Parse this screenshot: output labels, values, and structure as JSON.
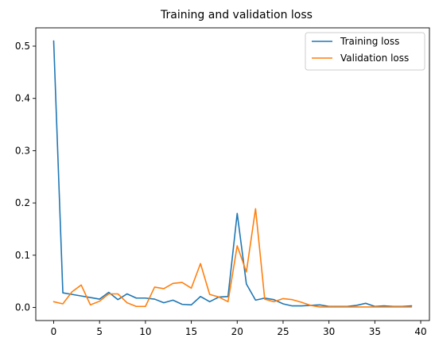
{
  "chart_data": {
    "type": "line",
    "title": "Training and validation loss",
    "xlabel": "",
    "ylabel": "",
    "xlim": [
      -1.95,
      40.95
    ],
    "ylim": [
      -0.025,
      0.535
    ],
    "xticks": [
      0,
      5,
      10,
      15,
      20,
      25,
      30,
      35,
      40
    ],
    "yticks": [
      0.0,
      0.1,
      0.2,
      0.3,
      0.4,
      0.5
    ],
    "ytick_labels": [
      "0.0",
      "0.1",
      "0.2",
      "0.3",
      "0.4",
      "0.5"
    ],
    "grid": false,
    "legend_position": "top-right",
    "x": [
      0,
      1,
      2,
      3,
      4,
      5,
      6,
      7,
      8,
      9,
      10,
      11,
      12,
      13,
      14,
      15,
      16,
      17,
      18,
      19,
      20,
      21,
      22,
      23,
      24,
      25,
      26,
      27,
      28,
      29,
      30,
      31,
      32,
      33,
      34,
      35,
      36,
      37,
      38,
      39
    ],
    "series": [
      {
        "name": "Training loss",
        "color": "#1f77b4",
        "values": [
          0.51,
          0.028,
          0.025,
          0.022,
          0.019,
          0.016,
          0.029,
          0.015,
          0.026,
          0.018,
          0.018,
          0.016,
          0.009,
          0.014,
          0.006,
          0.005,
          0.021,
          0.011,
          0.02,
          0.021,
          0.18,
          0.045,
          0.014,
          0.018,
          0.015,
          0.007,
          0.003,
          0.003,
          0.004,
          0.005,
          0.002,
          0.002,
          0.002,
          0.004,
          0.008,
          0.002,
          0.003,
          0.002,
          0.002,
          0.003
        ]
      },
      {
        "name": "Validation loss",
        "color": "#ff7f0e",
        "values": [
          0.011,
          0.007,
          0.03,
          0.043,
          0.005,
          0.012,
          0.026,
          0.026,
          0.009,
          0.002,
          0.002,
          0.039,
          0.036,
          0.046,
          0.048,
          0.037,
          0.084,
          0.025,
          0.02,
          0.011,
          0.118,
          0.068,
          0.189,
          0.016,
          0.011,
          0.017,
          0.015,
          0.01,
          0.004,
          0.001,
          0.001,
          0.001,
          0.001,
          0.001,
          0.001,
          0.001,
          0.001,
          0.001,
          0.001,
          0.001
        ]
      }
    ]
  }
}
